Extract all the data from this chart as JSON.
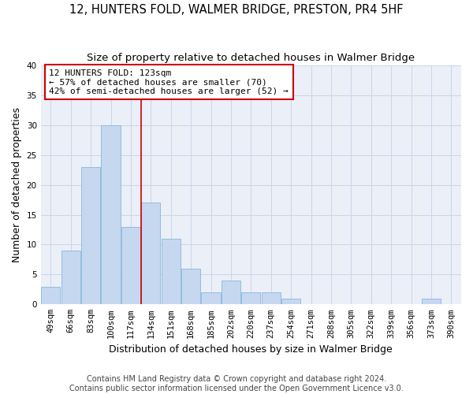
{
  "title": "12, HUNTERS FOLD, WALMER BRIDGE, PRESTON, PR4 5HF",
  "subtitle": "Size of property relative to detached houses in Walmer Bridge",
  "xlabel": "Distribution of detached houses by size in Walmer Bridge",
  "ylabel": "Number of detached properties",
  "categories": [
    "49sqm",
    "66sqm",
    "83sqm",
    "100sqm",
    "117sqm",
    "134sqm",
    "151sqm",
    "168sqm",
    "185sqm",
    "202sqm",
    "220sqm",
    "237sqm",
    "254sqm",
    "271sqm",
    "288sqm",
    "305sqm",
    "322sqm",
    "339sqm",
    "356sqm",
    "373sqm",
    "390sqm"
  ],
  "values": [
    3,
    9,
    23,
    30,
    13,
    17,
    11,
    6,
    2,
    4,
    2,
    2,
    1,
    0,
    0,
    0,
    0,
    0,
    0,
    1,
    0
  ],
  "bar_color": "#c5d8f0",
  "bar_edge_color": "#7aadd4",
  "vline_x": 4.5,
  "property_label": "12 HUNTERS FOLD: 123sqm",
  "annotation_line1": "← 57% of detached houses are smaller (70)",
  "annotation_line2": "42% of semi-detached houses are larger (52) →",
  "annotation_box_color": "#ffffff",
  "annotation_box_edge_color": "#cc0000",
  "vline_color": "#cc0000",
  "ylim": [
    0,
    40
  ],
  "yticks": [
    0,
    5,
    10,
    15,
    20,
    25,
    30,
    35,
    40
  ],
  "grid_color": "#ccd5e8",
  "background_color": "#eaeff8",
  "footnote1": "Contains HM Land Registry data © Crown copyright and database right 2024.",
  "footnote2": "Contains public sector information licensed under the Open Government Licence v3.0.",
  "title_fontsize": 10.5,
  "subtitle_fontsize": 9.5,
  "xlabel_fontsize": 9,
  "ylabel_fontsize": 9,
  "tick_fontsize": 7.5,
  "annotation_fontsize": 8,
  "footnote_fontsize": 7
}
